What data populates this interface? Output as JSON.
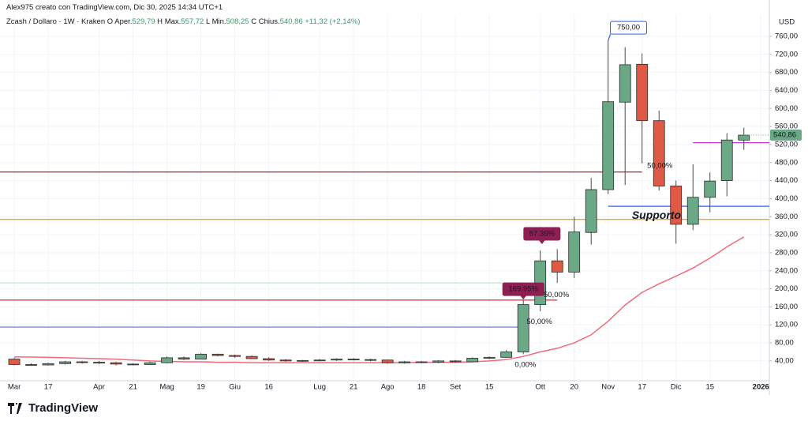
{
  "header": {
    "credit": "Alex975 creato con TradingView.com, Dic 30, 2025 14:34 UTC+1",
    "symbol": "Zcash / Dollaro · 1W · Kraken",
    "ohlc": [
      {
        "key": "O",
        "label": "Aper.",
        "value": "529,79"
      },
      {
        "key": "H",
        "label": "Max.",
        "value": "557,72"
      },
      {
        "key": "L",
        "label": "Min.",
        "value": "508,25"
      },
      {
        "key": "C",
        "label": "Chius.",
        "value": "540,86"
      }
    ],
    "change": "+11,32 (+2,14%)"
  },
  "logo": "TradingView",
  "chart_data": {
    "type": "candlestick",
    "currency": "USD",
    "grid": true,
    "up_color": "#6aa886",
    "down_color": "#de5a44",
    "open": [
      44,
      32,
      31,
      34,
      38,
      37,
      36,
      33,
      32,
      36,
      47,
      44,
      55,
      52,
      50,
      45,
      42,
      40,
      41,
      42,
      44,
      43,
      42,
      36,
      38,
      37,
      40,
      38,
      46,
      48,
      60,
      165,
      262,
      237,
      325,
      420,
      614,
      698,
      573,
      428,
      343,
      403,
      440,
      529.79
    ],
    "high": [
      47,
      35,
      36,
      40,
      40,
      40,
      38,
      35,
      38,
      50,
      50,
      57,
      56,
      54,
      52,
      48,
      44,
      42,
      44,
      46,
      46,
      45,
      43,
      40,
      40,
      42,
      42,
      48,
      50,
      64,
      175,
      285,
      288,
      360,
      446,
      750,
      736,
      722,
      595,
      440,
      476,
      458,
      545,
      557.72
    ],
    "low": [
      30,
      29,
      30,
      32,
      34,
      33,
      30,
      30,
      31,
      35,
      42,
      44,
      50,
      47,
      44,
      40,
      38,
      38,
      39,
      40,
      41,
      39,
      34,
      34,
      35,
      35,
      36,
      37,
      44,
      47,
      55,
      150,
      213,
      224,
      298,
      410,
      430,
      478,
      418,
      300,
      330,
      370,
      405,
      508.25
    ],
    "close": [
      32,
      31,
      34,
      38,
      37,
      36,
      33,
      32,
      36,
      47,
      44,
      55,
      52,
      50,
      45,
      42,
      40,
      41,
      42,
      44,
      43,
      42,
      36,
      38,
      37,
      40,
      38,
      46,
      48,
      60,
      165,
      262,
      237,
      326,
      420,
      615,
      697,
      573,
      428,
      343,
      403,
      439,
      530,
      540.86
    ],
    "ma": {
      "color": "#f06a78",
      "values": [
        49,
        48.5,
        48,
        47,
        46,
        45,
        44,
        42,
        40,
        39,
        38,
        38,
        37,
        37,
        36,
        36,
        36,
        36,
        36,
        36,
        36,
        36,
        36,
        36,
        37,
        37,
        37,
        38,
        40,
        43,
        50,
        60,
        68,
        80,
        98,
        128,
        164,
        192,
        211,
        228,
        246,
        268,
        293,
        315
      ]
    },
    "last_price": {
      "value": 540.86,
      "label": "540,86"
    },
    "levels": [
      {
        "value": 459,
        "color": "#a8322c",
        "x_range": [
          null,
          37
        ]
      },
      {
        "value": 354,
        "color": "#f0a028",
        "x_range": [
          null,
          null
        ]
      },
      {
        "value": 213,
        "color": "#bfe5d0",
        "x_range": [
          null,
          30
        ]
      },
      {
        "value": 175,
        "color": "#d0303a",
        "x_range": [
          null,
          32
        ]
      },
      {
        "value": 115,
        "color": "#8585d8",
        "x_range": [
          null,
          30
        ]
      },
      {
        "value": 383,
        "color": "#2962ff",
        "x_range": [
          35,
          null
        ]
      },
      {
        "value": 524,
        "color": "#c03cc0",
        "x_range": [
          40,
          null
        ]
      }
    ],
    "annotations": [
      {
        "text": "169.95%",
        "x": 30,
        "y": 199,
        "box": "#8e1f52",
        "text_color": "#ffffff"
      },
      {
        "text": "57.36%",
        "x": 31.1,
        "y": 322,
        "box": "#8e1f52",
        "text_color": "#ffffff"
      },
      {
        "text": "750,00",
        "x": 36.2,
        "y": 779,
        "box": "#ffffff",
        "border": "#2962ff",
        "text_color": "#2962ff",
        "pointer_to": [
          35,
          750
        ]
      },
      {
        "text": "Supporto",
        "x": 36.4,
        "y": 362,
        "text_color": "#2962ff",
        "big": true
      },
      {
        "text": "50,00%",
        "x": 31.2,
        "y": 186,
        "text_color": "#e0533f"
      },
      {
        "text": "50,00%",
        "x": 30.2,
        "y": 127,
        "text_color": "#8a7bd0"
      },
      {
        "text": "50,00%",
        "x": 37.3,
        "y": 473,
        "text_color": "#e0533f"
      },
      {
        "text": "0,00%",
        "x": 29.5,
        "y": 31,
        "text_color": "#a5d9bf"
      }
    ],
    "xlim": [
      -0.84,
      44.5
    ],
    "ylim": [
      -4,
      809
    ],
    "xticks": [
      {
        "value": 0,
        "label": "Mar"
      },
      {
        "value": 2,
        "label": "17"
      },
      {
        "value": 5,
        "label": "Apr"
      },
      {
        "value": 7,
        "label": "21"
      },
      {
        "value": 9,
        "label": "Mag"
      },
      {
        "value": 11,
        "label": "19"
      },
      {
        "value": 13,
        "label": "Giu"
      },
      {
        "value": 15,
        "label": "16"
      },
      {
        "value": 18,
        "label": "Lug"
      },
      {
        "value": 20,
        "label": "21"
      },
      {
        "value": 22,
        "label": "Ago"
      },
      {
        "value": 24,
        "label": "18"
      },
      {
        "value": 26,
        "label": "Set"
      },
      {
        "value": 28,
        "label": "15"
      },
      {
        "value": 31,
        "label": "Ott"
      },
      {
        "value": 33,
        "label": "20"
      },
      {
        "value": 35,
        "label": "Nov"
      },
      {
        "value": 37,
        "label": "17"
      },
      {
        "value": 39,
        "label": "Dic"
      },
      {
        "value": 41,
        "label": "15"
      },
      {
        "value": 44,
        "label": "2026",
        "bold": true
      }
    ],
    "yticks": [
      {
        "value": 40,
        "label": "40,00"
      },
      {
        "value": 80,
        "label": "80,00"
      },
      {
        "value": 120,
        "label": "120,00"
      },
      {
        "value": 160,
        "label": "160,00"
      },
      {
        "value": 200,
        "label": "200,00"
      },
      {
        "value": 240,
        "label": "240,00"
      },
      {
        "value": 280,
        "label": "280,00"
      },
      {
        "value": 320,
        "label": "320,00"
      },
      {
        "value": 360,
        "label": "360,00"
      },
      {
        "value": 400,
        "label": "400,00"
      },
      {
        "value": 440,
        "label": "440,00"
      },
      {
        "value": 480,
        "label": "480,00"
      },
      {
        "value": 520,
        "label": "520,00"
      },
      {
        "value": 560,
        "label": "560,00"
      },
      {
        "value": 600,
        "label": "600,00"
      },
      {
        "value": 640,
        "label": "640,00"
      },
      {
        "value": 680,
        "label": "680,00"
      },
      {
        "value": 720,
        "label": "720,00"
      },
      {
        "value": 760,
        "label": "760,00"
      }
    ]
  }
}
